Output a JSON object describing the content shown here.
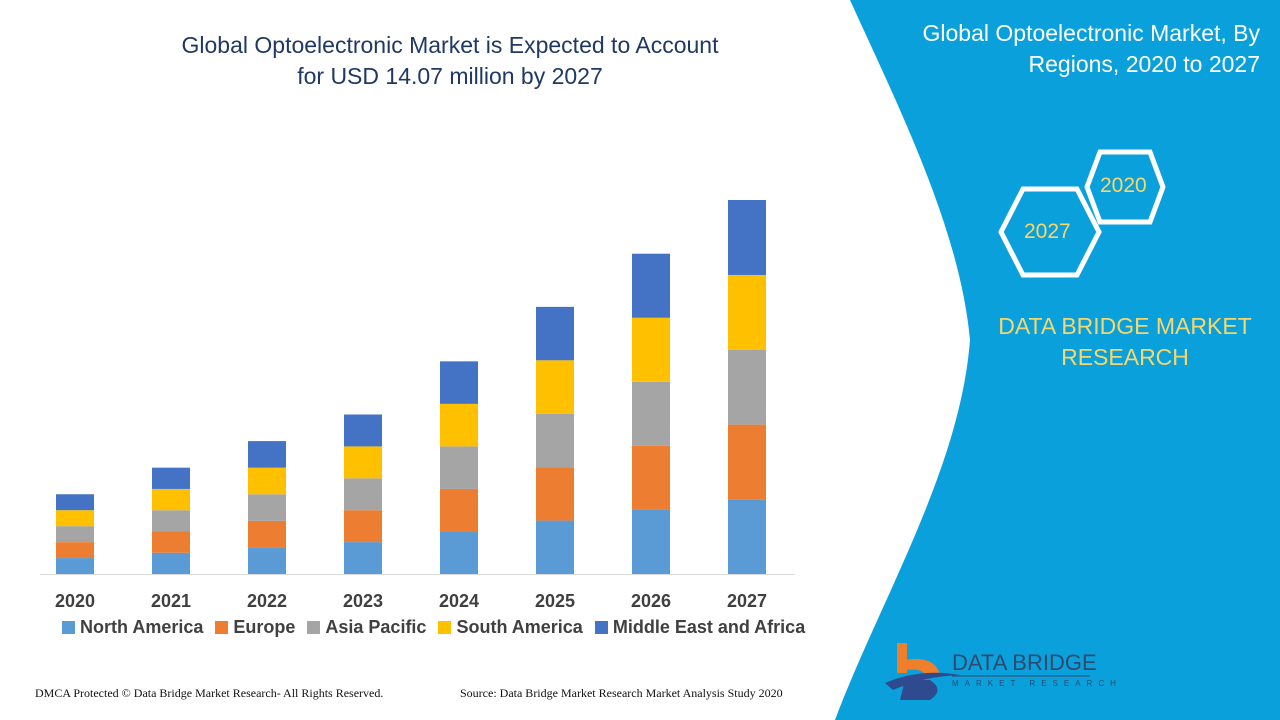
{
  "chart_data": {
    "type": "bar",
    "stacked": true,
    "title": "Global Optoelectronic Market is Expected to Account for USD 14.07 million by 2027",
    "categories": [
      "2020",
      "2021",
      "2022",
      "2023",
      "2024",
      "2025",
      "2026",
      "2027"
    ],
    "series": [
      {
        "name": "North America",
        "color": "#5b9bd5",
        "values": [
          0.6,
          0.8,
          1.0,
          1.2,
          1.6,
          2.01,
          2.41,
          2.81
        ]
      },
      {
        "name": "Europe",
        "color": "#ed7d31",
        "values": [
          0.6,
          0.8,
          1.0,
          1.2,
          1.6,
          2.01,
          2.41,
          2.81
        ]
      },
      {
        "name": "Asia Pacific",
        "color": "#a5a5a5",
        "values": [
          0.6,
          0.8,
          1.0,
          1.2,
          1.6,
          2.01,
          2.41,
          2.82
        ]
      },
      {
        "name": "South America",
        "color": "#ffc000",
        "values": [
          0.6,
          0.8,
          1.0,
          1.2,
          1.6,
          2.01,
          2.41,
          2.81
        ]
      },
      {
        "name": "Middle East and Africa",
        "color": "#4472c4",
        "values": [
          0.6,
          0.8,
          1.0,
          1.2,
          1.6,
          2.01,
          2.41,
          2.82
        ]
      }
    ],
    "ylim": [
      0,
      14.07
    ],
    "grid": false,
    "legend": "bottom"
  },
  "header": {
    "title_line1": "Global Optoelectronic Market is Expected to Account",
    "title_line2": "for USD 14.07 million by 2027"
  },
  "side": {
    "title_line1": "Global Optoelectronic Market, By",
    "title_line2": "Regions, 2020 to 2027",
    "hex_a": "2020",
    "hex_b": "2027",
    "brand_line1": "DATA BRIDGE MARKET",
    "brand_line2": "RESEARCH",
    "logo_name": "DATA BRIDGE",
    "logo_sub": "MARKET RESEARCH",
    "panel_color": "#0aa0dc"
  },
  "footer": {
    "left": "DMCA Protected © Data Bridge Market Research- All Rights Reserved.",
    "right": "Source: Data Bridge Market Research Market Analysis Study 2020"
  }
}
